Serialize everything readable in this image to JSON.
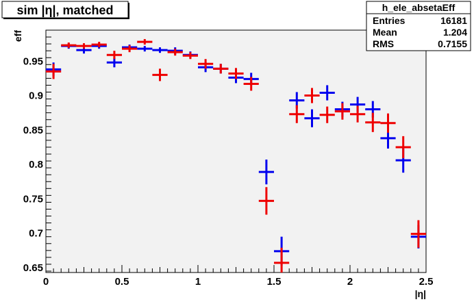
{
  "chart_data": {
    "type": "scatter",
    "title": "sim |η|, matched",
    "xlabel": "|η|",
    "ylabel": "eff",
    "xlim": [
      0,
      2.5
    ],
    "ylim": [
      0.643,
      0.995
    ],
    "x_ticks": [
      "0",
      "0.5",
      "1",
      "1.5",
      "2",
      "2.5"
    ],
    "x_tick_values": [
      0,
      0.5,
      1,
      1.5,
      2,
      2.5
    ],
    "y_ticks": [
      "0.65",
      "0.7",
      "0.75",
      "0.8",
      "0.85",
      "0.9",
      "0.95"
    ],
    "y_tick_values": [
      0.65,
      0.7,
      0.75,
      0.8,
      0.85,
      0.9,
      0.95
    ],
    "grid": false,
    "bin_half_width": 0.05,
    "series": [
      {
        "color": "#0000ee",
        "points": [
          {
            "x": 0.05,
            "y": 0.938,
            "err": 0.01
          },
          {
            "x": 0.15,
            "y": 0.972,
            "err": 0.004
          },
          {
            "x": 0.25,
            "y": 0.966,
            "err": 0.005
          },
          {
            "x": 0.35,
            "y": 0.972,
            "err": 0.004
          },
          {
            "x": 0.45,
            "y": 0.948,
            "err": 0.007
          },
          {
            "x": 0.55,
            "y": 0.97,
            "err": 0.004
          },
          {
            "x": 0.65,
            "y": 0.968,
            "err": 0.004
          },
          {
            "x": 0.75,
            "y": 0.966,
            "err": 0.004
          },
          {
            "x": 0.85,
            "y": 0.965,
            "err": 0.005
          },
          {
            "x": 0.95,
            "y": 0.959,
            "err": 0.005
          },
          {
            "x": 1.05,
            "y": 0.941,
            "err": 0.007
          },
          {
            "x": 1.15,
            "y": 0.939,
            "err": 0.007
          },
          {
            "x": 1.25,
            "y": 0.926,
            "err": 0.008
          },
          {
            "x": 1.35,
            "y": 0.924,
            "err": 0.009
          },
          {
            "x": 1.45,
            "y": 0.789,
            "err": 0.018
          },
          {
            "x": 1.55,
            "y": 0.674,
            "err": 0.021
          },
          {
            "x": 1.65,
            "y": 0.893,
            "err": 0.012
          },
          {
            "x": 1.75,
            "y": 0.867,
            "err": 0.013
          },
          {
            "x": 1.85,
            "y": 0.904,
            "err": 0.011
          },
          {
            "x": 1.95,
            "y": 0.88,
            "err": 0.011
          },
          {
            "x": 2.05,
            "y": 0.887,
            "err": 0.011
          },
          {
            "x": 2.15,
            "y": 0.88,
            "err": 0.012
          },
          {
            "x": 2.25,
            "y": 0.838,
            "err": 0.015
          },
          {
            "x": 2.35,
            "y": 0.806,
            "err": 0.018
          },
          {
            "x": 2.45,
            "y": 0.695,
            "err": 0.017
          }
        ]
      },
      {
        "color": "#ee0000",
        "points": [
          {
            "x": 0.05,
            "y": 0.935,
            "err": 0.011
          },
          {
            "x": 0.15,
            "y": 0.973,
            "err": 0.004
          },
          {
            "x": 0.25,
            "y": 0.972,
            "err": 0.004
          },
          {
            "x": 0.35,
            "y": 0.974,
            "err": 0.004
          },
          {
            "x": 0.45,
            "y": 0.959,
            "err": 0.006
          },
          {
            "x": 0.55,
            "y": 0.968,
            "err": 0.005
          },
          {
            "x": 0.65,
            "y": 0.978,
            "err": 0.004
          },
          {
            "x": 0.75,
            "y": 0.93,
            "err": 0.009
          },
          {
            "x": 0.85,
            "y": 0.963,
            "err": 0.005
          },
          {
            "x": 0.95,
            "y": 0.958,
            "err": 0.005
          },
          {
            "x": 1.05,
            "y": 0.946,
            "err": 0.007
          },
          {
            "x": 1.15,
            "y": 0.939,
            "err": 0.007
          },
          {
            "x": 1.25,
            "y": 0.932,
            "err": 0.008
          },
          {
            "x": 1.35,
            "y": 0.917,
            "err": 0.01
          },
          {
            "x": 1.45,
            "y": 0.747,
            "err": 0.02
          },
          {
            "x": 1.55,
            "y": 0.657,
            "err": 0.022
          },
          {
            "x": 1.65,
            "y": 0.873,
            "err": 0.013
          },
          {
            "x": 1.75,
            "y": 0.9,
            "err": 0.011
          },
          {
            "x": 1.85,
            "y": 0.872,
            "err": 0.012
          },
          {
            "x": 1.95,
            "y": 0.877,
            "err": 0.012
          },
          {
            "x": 2.05,
            "y": 0.873,
            "err": 0.012
          },
          {
            "x": 2.15,
            "y": 0.861,
            "err": 0.014
          },
          {
            "x": 2.25,
            "y": 0.86,
            "err": 0.014
          },
          {
            "x": 2.35,
            "y": 0.825,
            "err": 0.016
          },
          {
            "x": 2.45,
            "y": 0.699,
            "err": 0.02
          }
        ]
      }
    ],
    "stats_box": {
      "name": "h_ele_absetaEff",
      "rows": [
        {
          "label": "Entries",
          "value": "16181"
        },
        {
          "label": "Mean",
          "value": "1.204"
        },
        {
          "label": "RMS",
          "value": "0.7155"
        }
      ]
    }
  },
  "colors": {
    "frame_background": "#f2f2f2",
    "page_background": "#ffffff"
  }
}
